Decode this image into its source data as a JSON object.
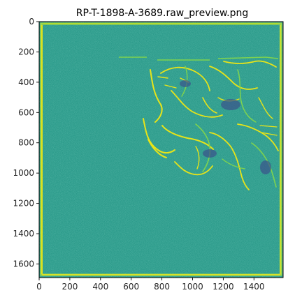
{
  "figure": {
    "title": "RP-T-1898-A-3689.raw_preview.png"
  },
  "chart_data": {
    "type": "heatmap",
    "title": "RP-T-1898-A-3689.raw_preview.png",
    "xlabel": "",
    "ylabel": "",
    "image_size": [
      1590,
      1690
    ],
    "xlim": [
      0,
      1590
    ],
    "ylim": [
      1690,
      0
    ],
    "y_inverted": true,
    "xticks": [
      0,
      200,
      400,
      600,
      800,
      1000,
      1200,
      1400
    ],
    "xtick_labels": [
      "0",
      "200",
      "400",
      "600",
      "800",
      "1000",
      "1200",
      "1400"
    ],
    "yticks": [
      0,
      200,
      400,
      600,
      800,
      1000,
      1200,
      1400,
      1600
    ],
    "ytick_labels": [
      "0",
      "200",
      "400",
      "600",
      "800",
      "1000",
      "1200",
      "1400",
      "1600"
    ],
    "grid": false,
    "colormap": "viridis",
    "colors": {
      "background": "#2a9a8a",
      "border": "#c8e030",
      "line_bright": "#e8e418",
      "line_mid": "#7fd34e",
      "dark_patch": "#3b528b"
    }
  }
}
